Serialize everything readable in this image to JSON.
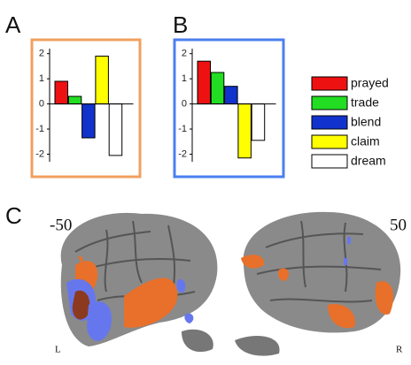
{
  "chart_data": [
    {
      "type": "bar",
      "label": "A",
      "frame_color": "#f0a060",
      "categories": [
        "prayed",
        "trade",
        "blend",
        "claim",
        "dream"
      ],
      "colors": [
        "#ee1111",
        "#22dd22",
        "#1133cc",
        "#ffff00",
        "#ffffff"
      ],
      "values": [
        0.9,
        0.3,
        -1.35,
        1.9,
        -2.05
      ],
      "ylim": [
        -2.3,
        2.2
      ],
      "yticks": [
        2,
        1,
        0,
        -1,
        -2
      ]
    },
    {
      "type": "bar",
      "label": "B",
      "frame_color": "#4a7ff0",
      "categories": [
        "prayed",
        "trade",
        "blend",
        "claim",
        "dream"
      ],
      "colors": [
        "#ee1111",
        "#22dd22",
        "#1133cc",
        "#ffff00",
        "#ffffff"
      ],
      "values": [
        1.7,
        1.25,
        0.7,
        -2.15,
        -1.45
      ],
      "ylim": [
        -2.3,
        2.2
      ],
      "yticks": [
        2,
        1,
        0,
        -1,
        -2
      ]
    }
  ],
  "brain": {
    "label": "C",
    "left_coord": "-50",
    "right_coord": "50",
    "left_side": "L",
    "right_side": "R"
  }
}
